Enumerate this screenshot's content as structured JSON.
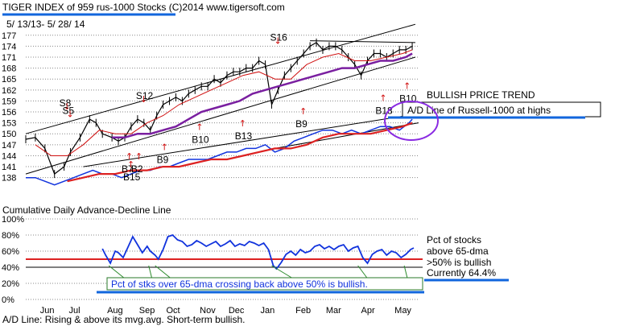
{
  "header": {
    "title": "TIGER INDEX of  959 rus-1000 Stocks  (C)2014   www.tigersoft.com",
    "date_range": "5/ 13/13-  5/ 28/ 14"
  },
  "colors": {
    "price": "#000000",
    "ma21": "#d01010",
    "ma65": "#7a1fa0",
    "ad_line": "#1133dd",
    "ad_ma": "#dd2222",
    "channel": "#000000",
    "signal_red": "#d01010",
    "callout_underline": "#1166dd",
    "circle": "#8a2be2",
    "pct_line": "#1133dd",
    "fifty_line": "#dd2222",
    "grid": "#888888"
  },
  "chart_data": [
    {
      "type": "line",
      "title": "TIGER INDEX of  959 rus-1000 Stocks",
      "y_ticks": [
        177,
        174,
        171,
        168,
        165,
        162,
        159,
        156,
        153,
        150,
        147,
        144,
        141,
        138
      ],
      "ylim": [
        135.5,
        178.5
      ],
      "x_months": [
        "Jun",
        "Jul",
        "Aug",
        "Sep",
        "Oct",
        "Nov",
        "Dec",
        "Jan",
        "Feb",
        "Mar",
        "Apr",
        "May"
      ],
      "x_month_index": [
        0.4,
        1.3,
        2.5,
        3.5,
        4.35,
        5.4,
        6.3,
        7.3,
        8.4,
        9.35,
        10.45,
        11.5
      ],
      "xlim": [
        -0.3,
        12.0
      ],
      "series": [
        {
          "key": "price",
          "x": [
            -0.3,
            0.0,
            0.3,
            0.6,
            0.9,
            1.1,
            1.4,
            1.7,
            1.9,
            2.1,
            2.4,
            2.6,
            2.8,
            3.0,
            3.2,
            3.4,
            3.6,
            3.8,
            4.0,
            4.2,
            4.4,
            4.6,
            4.8,
            5.0,
            5.2,
            5.4,
            5.6,
            5.8,
            6.0,
            6.2,
            6.4,
            6.6,
            6.8,
            7.0,
            7.2,
            7.4,
            7.6,
            7.8,
            8.0,
            8.2,
            8.4,
            8.6,
            8.8,
            9.0,
            9.2,
            9.4,
            9.6,
            9.8,
            10.0,
            10.2,
            10.4,
            10.6,
            10.8,
            11.0,
            11.2,
            11.4,
            11.6,
            11.8
          ],
          "values": [
            148.5,
            149,
            146,
            139,
            141,
            145,
            149,
            154,
            153,
            150,
            149,
            148,
            149,
            152,
            154,
            153,
            151,
            155,
            158,
            159,
            160,
            159,
            161,
            162,
            163,
            163,
            165,
            164,
            166,
            167,
            167,
            168,
            168,
            170,
            169,
            158,
            162,
            166,
            168,
            170,
            172,
            174,
            175,
            173,
            174,
            174,
            173,
            171,
            169,
            166,
            170,
            172,
            172,
            171,
            172,
            173,
            173,
            174
          ]
        },
        {
          "key": "ma21",
          "x": [
            0.0,
            0.5,
            1.0,
            1.5,
            2.0,
            2.5,
            3.0,
            3.5,
            4.0,
            4.5,
            5.0,
            5.5,
            6.0,
            6.5,
            7.0,
            7.5,
            8.0,
            8.5,
            9.0,
            9.5,
            10.0,
            10.5,
            11.0,
            11.5,
            11.8
          ],
          "values": [
            147,
            144,
            144,
            147,
            151,
            150,
            150,
            153,
            155,
            158,
            160,
            162,
            164,
            166,
            167,
            165,
            165,
            169,
            171,
            172,
            170,
            170,
            171,
            172,
            173
          ]
        },
        {
          "key": "ma65",
          "x": [
            2.4,
            2.8,
            3.2,
            3.6,
            4.0,
            4.4,
            4.8,
            5.2,
            5.6,
            6.0,
            6.4,
            6.8,
            7.2,
            7.6,
            8.0,
            8.4,
            8.8,
            9.2,
            9.6,
            10.0,
            10.4,
            10.8,
            11.2,
            11.6,
            11.8
          ],
          "values": [
            149,
            149,
            150,
            150,
            151,
            152,
            154,
            156,
            157,
            158,
            159,
            161,
            162,
            163,
            164,
            165,
            166,
            167,
            168,
            168,
            169,
            170,
            170,
            171,
            172
          ]
        },
        {
          "key": "ad_line",
          "x": [
            -0.3,
            0.0,
            0.3,
            0.6,
            0.9,
            1.2,
            1.5,
            1.8,
            2.1,
            2.4,
            2.7,
            3.0,
            3.3,
            3.6,
            3.9,
            4.2,
            4.5,
            4.8,
            5.1,
            5.4,
            5.7,
            6.0,
            6.3,
            6.6,
            6.9,
            7.2,
            7.5,
            7.8,
            8.1,
            8.4,
            8.7,
            9.0,
            9.3,
            9.6,
            9.9,
            10.2,
            10.5,
            10.8,
            11.1,
            11.4,
            11.7,
            11.8
          ],
          "values": [
            138,
            138,
            137,
            136,
            137,
            138,
            139,
            140,
            139,
            139,
            138,
            139,
            140,
            140,
            141,
            141,
            142,
            143,
            143,
            143,
            144,
            145,
            145,
            146,
            146,
            147,
            145,
            146,
            148,
            149,
            150,
            151,
            151,
            150,
            151,
            150,
            151,
            152,
            152,
            151,
            153,
            154
          ]
        },
        {
          "key": "ad_ma",
          "x": [
            1.0,
            1.5,
            2.0,
            2.5,
            3.0,
            3.5,
            4.0,
            4.5,
            5.0,
            5.5,
            6.0,
            6.5,
            7.0,
            7.5,
            8.0,
            8.5,
            9.0,
            9.5,
            10.0,
            10.5,
            11.0,
            11.5,
            11.8
          ],
          "values": [
            137,
            138,
            139,
            139,
            140,
            140,
            141,
            141,
            142,
            143,
            143,
            144,
            145,
            146,
            146,
            147,
            149,
            150,
            150,
            150,
            151,
            152,
            153
          ]
        }
      ],
      "channels": [
        {
          "key": "upper",
          "x": [
            -0.3,
            11.9
          ],
          "values": [
            150,
            180
          ]
        },
        {
          "key": "top_flat",
          "x": [
            8.6,
            11.9
          ],
          "values": [
            175.5,
            175
          ]
        },
        {
          "key": "lower",
          "x": [
            -0.3,
            11.9
          ],
          "values": [
            139,
            171
          ]
        },
        {
          "key": "ad_upper",
          "x": [
            1.5,
            12.0
          ],
          "values": [
            141,
            155.5
          ]
        },
        {
          "key": "ad_lower",
          "x": [
            7.5,
            12.0
          ],
          "values": [
            146,
            153
          ]
        }
      ],
      "signals": [
        {
          "label": "S8",
          "x": 0.95,
          "y": 157.5
        },
        {
          "label": "S5",
          "x": 1.05,
          "y": 155.5
        },
        {
          "label": "S12",
          "x": 3.35,
          "y": 159.5
        },
        {
          "label": "S16",
          "x": 7.55,
          "y": 175.5
        },
        {
          "label": "B10",
          "x": 5.1,
          "y": 147.5
        },
        {
          "label": "B13",
          "x": 6.45,
          "y": 148.5
        },
        {
          "label": "B9",
          "x": 4.0,
          "y": 142.0
        },
        {
          "label": "B9",
          "x": 8.35,
          "y": 151.8
        },
        {
          "label": "B7",
          "x": 2.9,
          "y": 139.5
        },
        {
          "label": "B2",
          "x": 3.2,
          "y": 139.5
        },
        {
          "label": "B15",
          "x": 2.95,
          "y": 137.3
        },
        {
          "label": "B18",
          "x": 10.85,
          "y": 155.5
        },
        {
          "label": "B10",
          "x": 11.6,
          "y": 158.8
        }
      ],
      "annotations": {
        "bullish_price_trend": "BULLISH PRICE TREND",
        "ad_callout": "A/D Line of Russell-1000 at highs"
      }
    },
    {
      "type": "line",
      "title": "Pct of stocks above 65-dma",
      "y_ticks": [
        "100%",
        "80%",
        "60%",
        "40%",
        "20%",
        "0%"
      ],
      "y_tick_values": [
        100,
        80,
        60,
        40,
        20,
        0
      ],
      "ylim": [
        0,
        100
      ],
      "xlim": [
        -0.3,
        12.0
      ],
      "reference_line": 50,
      "series": [
        {
          "key": "pct",
          "x": [
            2.1,
            2.2,
            2.35,
            2.5,
            2.6,
            2.75,
            2.9,
            3.05,
            3.2,
            3.35,
            3.5,
            3.6,
            3.75,
            3.85,
            4.0,
            4.15,
            4.3,
            4.45,
            4.6,
            4.75,
            4.9,
            5.05,
            5.2,
            5.35,
            5.5,
            5.65,
            5.8,
            5.95,
            6.1,
            6.25,
            6.4,
            6.55,
            6.7,
            6.85,
            7.0,
            7.15,
            7.3,
            7.45,
            7.55,
            7.7,
            7.85,
            8.0,
            8.15,
            8.3,
            8.45,
            8.6,
            8.75,
            8.9,
            9.05,
            9.2,
            9.35,
            9.5,
            9.65,
            9.8,
            9.95,
            10.1,
            10.25,
            10.4,
            10.55,
            10.7,
            10.85,
            11.0,
            11.15,
            11.3,
            11.45,
            11.6,
            11.75,
            11.85
          ],
          "values": [
            63,
            55,
            45,
            60,
            58,
            52,
            65,
            78,
            68,
            58,
            66,
            60,
            55,
            50,
            62,
            78,
            80,
            74,
            72,
            66,
            68,
            73,
            70,
            66,
            69,
            72,
            66,
            69,
            73,
            66,
            69,
            67,
            72,
            70,
            67,
            70,
            62,
            42,
            38,
            46,
            56,
            60,
            55,
            62,
            58,
            60,
            66,
            68,
            63,
            66,
            62,
            66,
            68,
            60,
            64,
            66,
            52,
            45,
            56,
            60,
            62,
            55,
            60,
            58,
            52,
            56,
            62,
            64
          ]
        }
      ],
      "annotations": {
        "heading": "Cumulative Daily Advance-Decline Line",
        "pct_label_1": "Pct of stocks",
        "pct_label_2": "above 65-dma",
        "fifty_label": ">50% is bullish",
        "currently": "Currently  64.4%",
        "bottom_callout": "Pct of stks over 65-dma crossing back above 50% is  bullish.",
        "footer": "A/D Line: Rising & above its mvg.avg.  Short-term bullish."
      }
    }
  ]
}
